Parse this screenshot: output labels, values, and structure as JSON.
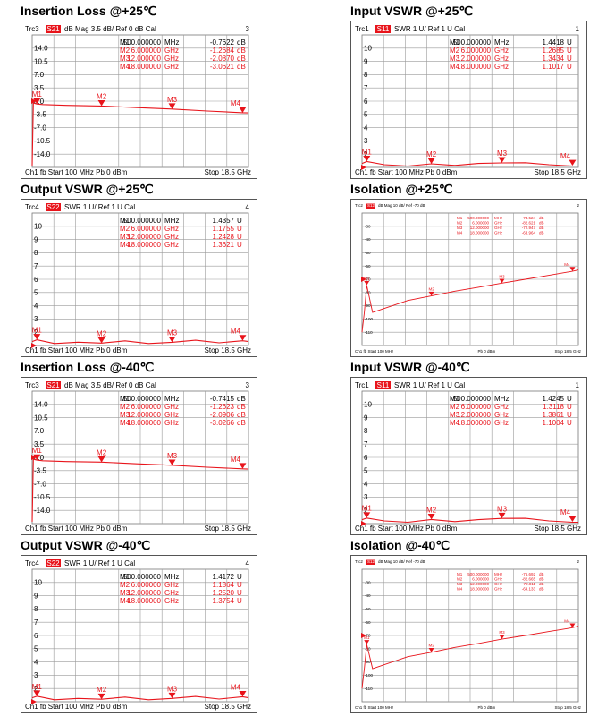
{
  "chart_data": [
    {
      "type": "line",
      "title": "Insertion Loss @+25℃",
      "header": {
        "trc": "Trc3",
        "param": "S21",
        "fmt": "dB Mag",
        "scale": "3.5 dB/",
        "ref": "Ref 0 dB",
        "cal": "Cal",
        "num": "3"
      },
      "footer": {
        "left": "Ch1  fb  Start  100 MHz   Pb   0 dBm",
        "right": "Stop  18.5 GHz"
      },
      "ytick_labels": [
        "17.5",
        "14.0",
        "10.5",
        "7.0",
        "3.5",
        "0.0",
        "-3.5",
        "-7.0",
        "-10.5",
        "-14.0",
        "-17.5"
      ],
      "ylim": [
        -17.5,
        17.5
      ],
      "xlim": [
        0.1,
        18.5
      ],
      "markers": [
        {
          "name": "M1",
          "freq": "500.000000",
          "unit": "MHz",
          "value": "-0.7622",
          "vunit": "dB"
        },
        {
          "name": "M2",
          "freq": "6.000000",
          "unit": "GHz",
          "value": "-1.2684",
          "vunit": "dB"
        },
        {
          "name": "M3",
          "freq": "12.000000",
          "unit": "GHz",
          "value": "-2.0870",
          "vunit": "dB"
        },
        {
          "name": "M4",
          "freq": "18.000000",
          "unit": "GHz",
          "value": "-3.0621",
          "vunit": "dB"
        }
      ],
      "series": [
        {
          "x": [
            0.1,
            0.2,
            0.5,
            1,
            3,
            6,
            9,
            12,
            15,
            18,
            18.5
          ],
          "y": [
            -17,
            -0.5,
            -0.76,
            -0.9,
            -1.1,
            -1.27,
            -1.7,
            -2.09,
            -2.6,
            -3.06,
            -3.1
          ]
        }
      ]
    },
    {
      "type": "line",
      "title": "Input VSWR @+25℃",
      "header": {
        "trc": "Trc1",
        "param": "S11",
        "fmt": "SWR",
        "scale": "1 U/",
        "ref": "Ref 1 U",
        "cal": "Cal",
        "num": "1"
      },
      "footer": {
        "left": "Ch1  fb  Start  100 MHz   Pb   0 dBm",
        "right": "Stop  18.5 GHz"
      },
      "ytick_labels": [
        "11",
        "10",
        "9",
        "8",
        "7",
        "6",
        "5",
        "4",
        "3",
        "2",
        "1"
      ],
      "ylim": [
        1,
        11
      ],
      "xlim": [
        0.1,
        18.5
      ],
      "markers": [
        {
          "name": "M1",
          "freq": "500.000000",
          "unit": "MHz",
          "value": "1.4418",
          "vunit": "U"
        },
        {
          "name": "M2",
          "freq": "6.000000",
          "unit": "GHz",
          "value": "1.2685",
          "vunit": "U"
        },
        {
          "name": "M3",
          "freq": "12.000000",
          "unit": "GHz",
          "value": "1.3434",
          "vunit": "U"
        },
        {
          "name": "M4",
          "freq": "18.000000",
          "unit": "GHz",
          "value": "1.1017",
          "vunit": "U"
        }
      ],
      "series": [
        {
          "x": [
            0.1,
            0.5,
            2,
            4,
            6,
            8,
            10,
            12,
            14,
            16,
            18,
            18.5
          ],
          "y": [
            1.3,
            1.44,
            1.2,
            1.1,
            1.27,
            1.15,
            1.3,
            1.34,
            1.35,
            1.2,
            1.1,
            1.1
          ]
        }
      ]
    },
    {
      "type": "line",
      "title": "Output VSWR @+25℃",
      "header": {
        "trc": "Trc4",
        "param": "S22",
        "fmt": "SWR",
        "scale": "1 U/",
        "ref": "Ref 1 U",
        "cal": "Cal",
        "num": "4"
      },
      "footer": {
        "left": "Ch1  fb  Start  100 MHz   Pb   0 dBm",
        "right": "Stop  18.5 GHz"
      },
      "ytick_labels": [
        "11",
        "10",
        "9",
        "8",
        "7",
        "6",
        "5",
        "4",
        "3",
        "2",
        "1"
      ],
      "ylim": [
        1,
        11
      ],
      "xlim": [
        0.1,
        18.5
      ],
      "markers": [
        {
          "name": "M1",
          "freq": "500.000000",
          "unit": "MHz",
          "value": "1.4357",
          "vunit": "U"
        },
        {
          "name": "M2",
          "freq": "6.000000",
          "unit": "GHz",
          "value": "1.1755",
          "vunit": "U"
        },
        {
          "name": "M3",
          "freq": "12.000000",
          "unit": "GHz",
          "value": "1.2428",
          "vunit": "U"
        },
        {
          "name": "M4",
          "freq": "18.000000",
          "unit": "GHz",
          "value": "1.3621",
          "vunit": "U"
        }
      ],
      "series": [
        {
          "x": [
            0.1,
            0.5,
            2,
            4,
            6,
            8,
            10,
            12,
            14,
            16,
            18,
            18.5
          ],
          "y": [
            1.3,
            1.43,
            1.15,
            1.25,
            1.18,
            1.35,
            1.15,
            1.24,
            1.4,
            1.2,
            1.36,
            1.3
          ]
        }
      ]
    },
    {
      "type": "line",
      "title": "Isolation @+25℃",
      "header": {
        "trc": "Trc2",
        "param": "S12",
        "fmt": "dB Mag",
        "scale": "10 dB/",
        "ref": "Ref -70 dB",
        "cal": "",
        "num": "2"
      },
      "footer": {
        "left": "Ch1  fb  Start  100 MHz",
        "mid": "Pb   0 dBm",
        "right": "Stop  18.5 GHz"
      },
      "ytick_labels": [
        "-20",
        "-30",
        "-40",
        "-50",
        "-60",
        "-70",
        "-80",
        "-90",
        "-100",
        "-110",
        "-120"
      ],
      "ylim": [
        -120,
        -20
      ],
      "xlim": [
        0.1,
        18.5
      ],
      "markers": [
        {
          "name": "M1",
          "freq": "500.000000",
          "unit": "MHz",
          "value": "-74.524",
          "vunit": "dB"
        },
        {
          "name": "M2",
          "freq": "6.000000",
          "unit": "GHz",
          "value": "-82.621",
          "vunit": "dB"
        },
        {
          "name": "M3",
          "freq": "12.000000",
          "unit": "GHz",
          "value": "-72.947",
          "vunit": "dB"
        },
        {
          "name": "M4",
          "freq": "18.000000",
          "unit": "GHz",
          "value": "-63.964",
          "vunit": "dB"
        }
      ],
      "series": [
        {
          "x": [
            0.1,
            0.3,
            0.5,
            1,
            2,
            4,
            6,
            8,
            10,
            12,
            14,
            16,
            18,
            18.5
          ],
          "y": [
            -110,
            -95,
            -74.5,
            -95,
            -92,
            -86,
            -82.6,
            -79,
            -76,
            -72.9,
            -70,
            -67,
            -64,
            -63
          ]
        }
      ]
    },
    {
      "type": "line",
      "title": "Insertion Loss @-40℃",
      "header": {
        "trc": "Trc3",
        "param": "S21",
        "fmt": "dB Mag",
        "scale": "3.5 dB/",
        "ref": "Ref 0 dB",
        "cal": "Cal",
        "num": "3"
      },
      "footer": {
        "left": "Ch1  fb  Start  100 MHz   Pb   0 dBm",
        "right": "Stop  18.5 GHz"
      },
      "ytick_labels": [
        "17.5",
        "14.0",
        "10.5",
        "7.0",
        "3.5",
        "0.0",
        "-3.5",
        "-7.0",
        "-10.5",
        "-14.0",
        "-17.5"
      ],
      "ylim": [
        -17.5,
        17.5
      ],
      "xlim": [
        0.1,
        18.5
      ],
      "markers": [
        {
          "name": "M1",
          "freq": "500.000000",
          "unit": "MHz",
          "value": "-0.7415",
          "vunit": "dB"
        },
        {
          "name": "M2",
          "freq": "6.000000",
          "unit": "GHz",
          "value": "-1.2623",
          "vunit": "dB"
        },
        {
          "name": "M3",
          "freq": "12.000000",
          "unit": "GHz",
          "value": "-2.0906",
          "vunit": "dB"
        },
        {
          "name": "M4",
          "freq": "18.000000",
          "unit": "GHz",
          "value": "-3.0266",
          "vunit": "dB"
        }
      ],
      "series": [
        {
          "x": [
            0.1,
            0.2,
            0.5,
            1,
            3,
            6,
            9,
            12,
            15,
            18,
            18.5
          ],
          "y": [
            -17,
            -0.5,
            -0.74,
            -0.9,
            -1.1,
            -1.26,
            -1.7,
            -2.09,
            -2.6,
            -3.03,
            -3.1
          ]
        }
      ]
    },
    {
      "type": "line",
      "title": "Input VSWR @-40℃",
      "header": {
        "trc": "Trc1",
        "param": "S11",
        "fmt": "SWR",
        "scale": "1 U/",
        "ref": "Ref 1 U",
        "cal": "Cal",
        "num": "1"
      },
      "footer": {
        "left": "Ch1  fb  Start  100 MHz   Pb   0 dBm",
        "right": "Stop  18.5 GHz"
      },
      "ytick_labels": [
        "11",
        "10",
        "9",
        "8",
        "7",
        "6",
        "5",
        "4",
        "3",
        "2",
        "1"
      ],
      "ylim": [
        1,
        11
      ],
      "xlim": [
        0.1,
        18.5
      ],
      "markers": [
        {
          "name": "M1",
          "freq": "500.000000",
          "unit": "MHz",
          "value": "1.4245",
          "vunit": "U"
        },
        {
          "name": "M2",
          "freq": "6.000000",
          "unit": "GHz",
          "value": "1.3118",
          "vunit": "U"
        },
        {
          "name": "M3",
          "freq": "12.000000",
          "unit": "GHz",
          "value": "1.3861",
          "vunit": "U"
        },
        {
          "name": "M4",
          "freq": "18.000000",
          "unit": "GHz",
          "value": "1.1004",
          "vunit": "U"
        }
      ],
      "series": [
        {
          "x": [
            0.1,
            0.5,
            2,
            4,
            6,
            8,
            10,
            12,
            14,
            16,
            18,
            18.5
          ],
          "y": [
            1.3,
            1.42,
            1.2,
            1.1,
            1.31,
            1.15,
            1.3,
            1.39,
            1.4,
            1.2,
            1.1,
            1.1
          ]
        }
      ]
    },
    {
      "type": "line",
      "title": "Output VSWR @-40℃",
      "header": {
        "trc": "Trc4",
        "param": "S22",
        "fmt": "SWR",
        "scale": "1 U/",
        "ref": "Ref 1 U",
        "cal": "Cal",
        "num": "4"
      },
      "footer": {
        "left": "Ch1  fb  Start  100 MHz   Pb   0 dBm",
        "right": "Stop  18.5 GHz"
      },
      "ytick_labels": [
        "11",
        "10",
        "9",
        "8",
        "7",
        "6",
        "5",
        "4",
        "3",
        "2",
        "1"
      ],
      "ylim": [
        1,
        11
      ],
      "xlim": [
        0.1,
        18.5
      ],
      "markers": [
        {
          "name": "M1",
          "freq": "500.000000",
          "unit": "MHz",
          "value": "1.4172",
          "vunit": "U"
        },
        {
          "name": "M2",
          "freq": "6.000000",
          "unit": "GHz",
          "value": "1.1864",
          "vunit": "U"
        },
        {
          "name": "M3",
          "freq": "12.000000",
          "unit": "GHz",
          "value": "1.2520",
          "vunit": "U"
        },
        {
          "name": "M4",
          "freq": "18.000000",
          "unit": "GHz",
          "value": "1.3754",
          "vunit": "U"
        }
      ],
      "series": [
        {
          "x": [
            0.1,
            0.5,
            2,
            4,
            6,
            8,
            10,
            12,
            14,
            16,
            18,
            18.5
          ],
          "y": [
            1.3,
            1.42,
            1.15,
            1.25,
            1.19,
            1.35,
            1.15,
            1.25,
            1.4,
            1.2,
            1.38,
            1.3
          ]
        }
      ]
    },
    {
      "type": "line",
      "title": "Isolation @-40℃",
      "header": {
        "trc": "Trc2",
        "param": "S12",
        "fmt": "dB Mag",
        "scale": "10 dB/",
        "ref": "Ref -70 dB",
        "cal": "",
        "num": "2"
      },
      "footer": {
        "left": "Ch1  fb  Start  100 MHz",
        "mid": "Pb   0 dBm",
        "right": "Stop  18.5 GHz"
      },
      "ytick_labels": [
        "-20",
        "-30",
        "-40",
        "-50",
        "-60",
        "-70",
        "-80",
        "-90",
        "-100",
        "-110",
        "-120"
      ],
      "ylim": [
        -120,
        -20
      ],
      "xlim": [
        0.1,
        18.5
      ],
      "markers": [
        {
          "name": "M1",
          "freq": "500.000000",
          "unit": "MHz",
          "value": "-76.692",
          "vunit": "dB"
        },
        {
          "name": "M2",
          "freq": "6.000000",
          "unit": "GHz",
          "value": "-82.665",
          "vunit": "dB"
        },
        {
          "name": "M3",
          "freq": "12.000000",
          "unit": "GHz",
          "value": "-72.811",
          "vunit": "dB"
        },
        {
          "name": "M4",
          "freq": "18.000000",
          "unit": "GHz",
          "value": "-64.133",
          "vunit": "dB"
        }
      ],
      "series": [
        {
          "x": [
            0.1,
            0.3,
            0.5,
            1,
            2,
            4,
            6,
            8,
            10,
            12,
            14,
            16,
            18,
            18.5
          ],
          "y": [
            -110,
            -95,
            -76.7,
            -95,
            -92,
            -86,
            -82.7,
            -79,
            -76,
            -72.8,
            -70,
            -67,
            -64.1,
            -63
          ]
        }
      ]
    }
  ]
}
